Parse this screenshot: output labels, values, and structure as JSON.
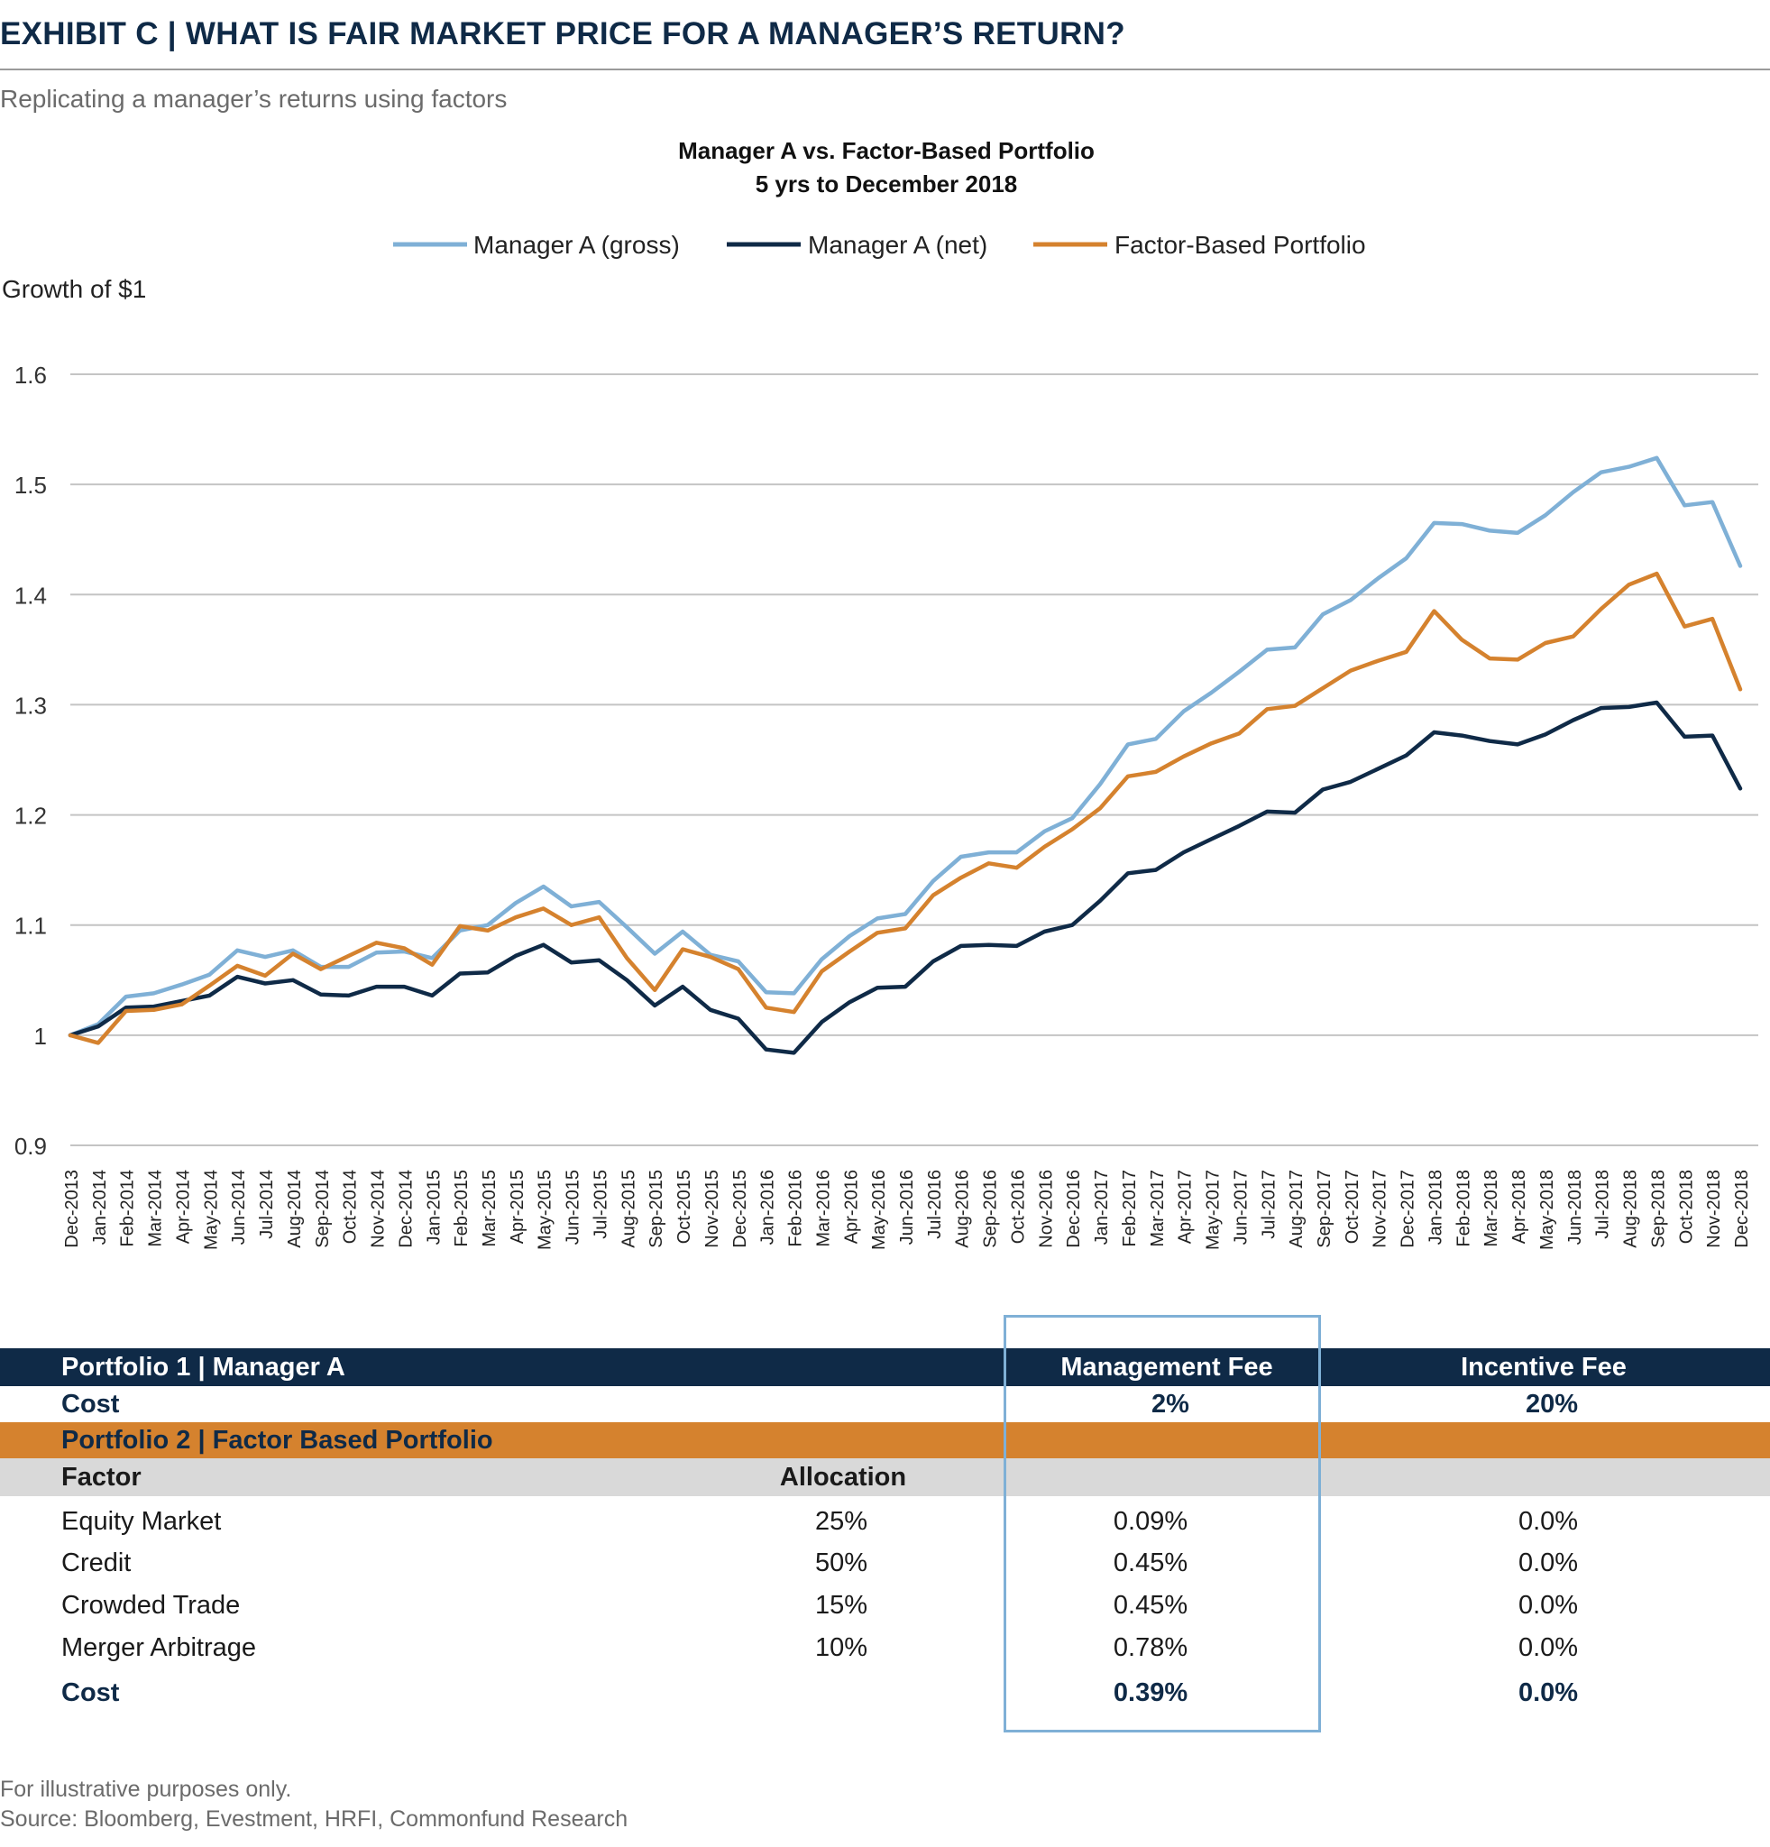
{
  "header": {
    "title": "EXHIBIT C  |  WHAT IS FAIR MARKET PRICE FOR A MANAGER’S RETURN?",
    "subtitle": "Replicating a manager’s returns using factors"
  },
  "colors": {
    "navy": "#0f2a47",
    "gross": "#7fb0d6",
    "net": "#0f2a47",
    "factor": "#d5822e",
    "orange_band": "#d5822e",
    "grey_band": "#d9d9d9",
    "highlight": "#7fb0d6"
  },
  "chart_data": {
    "type": "line",
    "title": "Manager A vs. Factor-Based Portfolio",
    "subtitle": "5 yrs to December 2018",
    "ylabel": "Growth of $1",
    "xlabel": "",
    "ylim": [
      0.9,
      1.6
    ],
    "yticks": [
      "0.9",
      "1",
      "1.1",
      "1.2",
      "1.3",
      "1.4",
      "1.5",
      "1.6"
    ],
    "grid": true,
    "legend_position": "top-center",
    "categories": [
      "Dec-2013",
      "Jan-2014",
      "Feb-2014",
      "Mar-2014",
      "Apr-2014",
      "May-2014",
      "Jun-2014",
      "Jul-2014",
      "Aug-2014",
      "Sep-2014",
      "Oct-2014",
      "Nov-2014",
      "Dec-2014",
      "Jan-2015",
      "Feb-2015",
      "Mar-2015",
      "Apr-2015",
      "May-2015",
      "Jun-2015",
      "Jul-2015",
      "Aug-2015",
      "Sep-2015",
      "Oct-2015",
      "Nov-2015",
      "Dec-2015",
      "Jan-2016",
      "Feb-2016",
      "Mar-2016",
      "Apr-2016",
      "May-2016",
      "Jun-2016",
      "Jul-2016",
      "Aug-2016",
      "Sep-2016",
      "Oct-2016",
      "Nov-2016",
      "Dec-2016",
      "Jan-2017",
      "Feb-2017",
      "Mar-2017",
      "Apr-2017",
      "May-2017",
      "Jun-2017",
      "Jul-2017",
      "Aug-2017",
      "Sep-2017",
      "Oct-2017",
      "Nov-2017",
      "Dec-2017",
      "Jan-2018",
      "Feb-2018",
      "Mar-2018",
      "Apr-2018",
      "May-2018",
      "Jun-2018",
      "Jul-2018",
      "Aug-2018",
      "Sep-2018",
      "Oct-2018",
      "Nov-2018",
      "Dec-2018"
    ],
    "series": [
      {
        "name": "Manager A (gross)",
        "color": "#7fb0d6",
        "values": [
          1.0,
          1.01,
          1.035,
          1.038,
          1.046,
          1.055,
          1.077,
          1.071,
          1.077,
          1.062,
          1.062,
          1.075,
          1.076,
          1.07,
          1.095,
          1.1,
          1.12,
          1.135,
          1.117,
          1.121,
          1.098,
          1.074,
          1.094,
          1.073,
          1.067,
          1.039,
          1.038,
          1.069,
          1.09,
          1.106,
          1.11,
          1.14,
          1.162,
          1.166,
          1.166,
          1.185,
          1.197,
          1.228,
          1.264,
          1.269,
          1.294,
          1.311,
          1.33,
          1.35,
          1.352,
          1.382,
          1.395,
          1.415,
          1.433,
          1.465,
          1.464,
          1.458,
          1.456,
          1.472,
          1.493,
          1.511,
          1.516,
          1.524,
          1.481,
          1.484,
          1.426
        ]
      },
      {
        "name": "Manager A (net)",
        "color": "#0f2a47",
        "values": [
          1.0,
          1.008,
          1.025,
          1.026,
          1.031,
          1.036,
          1.053,
          1.047,
          1.05,
          1.037,
          1.036,
          1.044,
          1.044,
          1.036,
          1.056,
          1.057,
          1.072,
          1.082,
          1.066,
          1.068,
          1.05,
          1.027,
          1.044,
          1.023,
          1.015,
          0.987,
          0.984,
          1.012,
          1.03,
          1.043,
          1.044,
          1.067,
          1.081,
          1.082,
          1.081,
          1.094,
          1.1,
          1.122,
          1.147,
          1.15,
          1.166,
          1.178,
          1.19,
          1.203,
          1.202,
          1.223,
          1.23,
          1.242,
          1.254,
          1.275,
          1.272,
          1.267,
          1.264,
          1.273,
          1.286,
          1.297,
          1.298,
          1.302,
          1.271,
          1.272,
          1.224
        ]
      },
      {
        "name": "Factor-Based Portfolio",
        "color": "#d5822e",
        "values": [
          1.0,
          0.993,
          1.022,
          1.023,
          1.028,
          1.045,
          1.063,
          1.054,
          1.074,
          1.06,
          1.072,
          1.084,
          1.079,
          1.064,
          1.099,
          1.095,
          1.107,
          1.115,
          1.1,
          1.107,
          1.07,
          1.041,
          1.078,
          1.071,
          1.06,
          1.025,
          1.021,
          1.058,
          1.076,
          1.093,
          1.097,
          1.127,
          1.143,
          1.156,
          1.152,
          1.171,
          1.187,
          1.206,
          1.235,
          1.239,
          1.253,
          1.265,
          1.274,
          1.296,
          1.299,
          1.315,
          1.331,
          1.34,
          1.348,
          1.385,
          1.359,
          1.342,
          1.341,
          1.356,
          1.362,
          1.387,
          1.409,
          1.419,
          1.371,
          1.378,
          1.314
        ]
      }
    ]
  },
  "table": {
    "p1": {
      "label": "Portfolio 1 | Manager A",
      "mgmt_header": "Management Fee",
      "incentive_header": "Incentive Fee",
      "cost_label": "Cost",
      "cost_mgmt": "2%",
      "cost_incentive": "20%"
    },
    "p2": {
      "label": "Portfolio 2 | Factor Based Portfolio",
      "factor_header": "Factor",
      "allocation_header": "Allocation",
      "rows": [
        {
          "factor": "Equity Market",
          "allocation": "25%",
          "mgmt": "0.09%",
          "incentive": "0.0%"
        },
        {
          "factor": "Credit",
          "allocation": "50%",
          "mgmt": "0.45%",
          "incentive": "0.0%"
        },
        {
          "factor": "Crowded Trade",
          "allocation": "15%",
          "mgmt": "0.45%",
          "incentive": "0.0%"
        },
        {
          "factor": "Merger Arbitrage",
          "allocation": "10%",
          "mgmt": "0.78%",
          "incentive": "0.0%"
        }
      ],
      "cost_label": "Cost",
      "cost_mgmt": "0.39%",
      "cost_incentive": "0.0%"
    }
  },
  "footnotes": {
    "line1": "For illustrative purposes only.",
    "line2": "Source: Bloomberg, Evestment, HRFI, Commonfund Research"
  }
}
